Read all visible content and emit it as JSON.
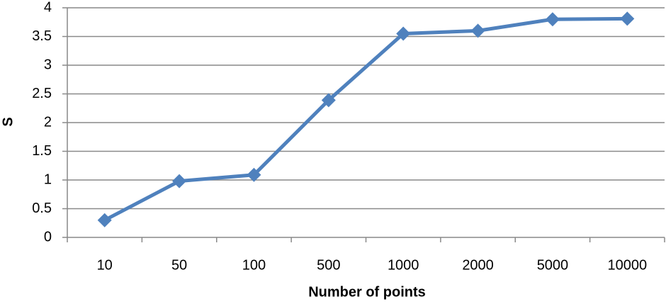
{
  "chart_data": {
    "type": "line",
    "categories": [
      "10",
      "50",
      "100",
      "500",
      "1000",
      "2000",
      "5000",
      "10000"
    ],
    "series": [
      {
        "name": "S",
        "color": "#4f81bd",
        "values": [
          0.3,
          0.98,
          1.09,
          2.39,
          3.55,
          3.6,
          3.8,
          3.81
        ]
      }
    ],
    "x_label": "Number of points",
    "y_label": "S",
    "ylim": [
      0,
      4
    ],
    "yticks": [
      0,
      0.5,
      1,
      1.5,
      2,
      2.5,
      3,
      3.5,
      4
    ],
    "grid": true,
    "legend": false
  }
}
